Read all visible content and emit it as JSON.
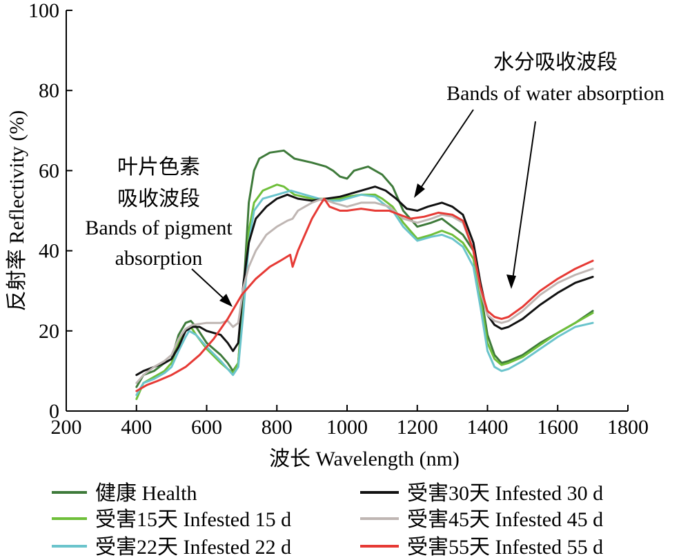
{
  "chart_data": {
    "type": "line",
    "xlabel": "波长 Wavelength (nm)",
    "ylabel": "反射率 Reflectivity (%)",
    "xlim": [
      200,
      1800
    ],
    "ylim": [
      0,
      100
    ],
    "xticks": [
      "200",
      "400",
      "600",
      "800",
      "1000",
      "1200",
      "1400",
      "1600",
      "1800"
    ],
    "yticks": [
      "0",
      "20",
      "40",
      "60",
      "80",
      "100"
    ],
    "grid": false,
    "legend_position": "bottom",
    "annotations": {
      "pigment_zh_line1": "叶片色素",
      "pigment_zh_line2": "吸收波段",
      "pigment_en_line1": "Bands of pigment",
      "pigment_en_line2": "absorption",
      "water_zh": "水分吸收波段",
      "water_en": "Bands of water  absorption"
    },
    "series": [
      {
        "name": "健康 Health",
        "color": "#3e7a3a",
        "points": [
          [
            400,
            6
          ],
          [
            420,
            9
          ],
          [
            450,
            10
          ],
          [
            480,
            12
          ],
          [
            500,
            13
          ],
          [
            520,
            19
          ],
          [
            540,
            22
          ],
          [
            555,
            22.5
          ],
          [
            570,
            21
          ],
          [
            600,
            17
          ],
          [
            640,
            14
          ],
          [
            660,
            12
          ],
          [
            675,
            10
          ],
          [
            690,
            12
          ],
          [
            705,
            30
          ],
          [
            720,
            52
          ],
          [
            735,
            60
          ],
          [
            750,
            63
          ],
          [
            780,
            64.5
          ],
          [
            820,
            65
          ],
          [
            850,
            63
          ],
          [
            900,
            62
          ],
          [
            940,
            61
          ],
          [
            960,
            60
          ],
          [
            980,
            58.5
          ],
          [
            1000,
            58
          ],
          [
            1020,
            60
          ],
          [
            1060,
            61
          ],
          [
            1100,
            59
          ],
          [
            1130,
            56
          ],
          [
            1160,
            50
          ],
          [
            1200,
            46
          ],
          [
            1240,
            47
          ],
          [
            1270,
            48
          ],
          [
            1300,
            46
          ],
          [
            1330,
            44
          ],
          [
            1360,
            40
          ],
          [
            1380,
            30
          ],
          [
            1400,
            19
          ],
          [
            1420,
            14
          ],
          [
            1440,
            12
          ],
          [
            1460,
            12.5
          ],
          [
            1500,
            14
          ],
          [
            1550,
            17
          ],
          [
            1600,
            19.5
          ],
          [
            1650,
            22
          ],
          [
            1700,
            25
          ]
        ]
      },
      {
        "name": "受害15天 Infested 15 d",
        "color": "#6fbf3a",
        "points": [
          [
            400,
            3
          ],
          [
            420,
            7
          ],
          [
            450,
            8.5
          ],
          [
            480,
            10
          ],
          [
            500,
            12
          ],
          [
            520,
            17
          ],
          [
            540,
            20
          ],
          [
            555,
            21
          ],
          [
            570,
            19
          ],
          [
            600,
            15.5
          ],
          [
            640,
            12
          ],
          [
            660,
            10.5
          ],
          [
            675,
            9.5
          ],
          [
            690,
            12
          ],
          [
            705,
            28
          ],
          [
            720,
            45
          ],
          [
            735,
            52
          ],
          [
            760,
            55
          ],
          [
            800,
            56.5
          ],
          [
            820,
            56
          ],
          [
            850,
            54
          ],
          [
            900,
            53
          ],
          [
            940,
            53
          ],
          [
            980,
            53
          ],
          [
            1000,
            53.5
          ],
          [
            1040,
            54
          ],
          [
            1080,
            54
          ],
          [
            1100,
            53
          ],
          [
            1130,
            51
          ],
          [
            1160,
            47
          ],
          [
            1200,
            43
          ],
          [
            1240,
            44
          ],
          [
            1270,
            45
          ],
          [
            1300,
            44
          ],
          [
            1330,
            42
          ],
          [
            1360,
            38
          ],
          [
            1380,
            28
          ],
          [
            1400,
            17
          ],
          [
            1420,
            13
          ],
          [
            1440,
            11.5
          ],
          [
            1460,
            12
          ],
          [
            1500,
            13.5
          ],
          [
            1550,
            16.5
          ],
          [
            1600,
            19.5
          ],
          [
            1650,
            22
          ],
          [
            1700,
            24.5
          ]
        ]
      },
      {
        "name": "受害22天 Infested 22 d",
        "color": "#6bc4cc",
        "points": [
          [
            400,
            4
          ],
          [
            420,
            7
          ],
          [
            450,
            8
          ],
          [
            480,
            9.5
          ],
          [
            500,
            11
          ],
          [
            520,
            15
          ],
          [
            540,
            18.5
          ],
          [
            550,
            20
          ],
          [
            570,
            19
          ],
          [
            600,
            16
          ],
          [
            640,
            12.5
          ],
          [
            660,
            10.5
          ],
          [
            675,
            9
          ],
          [
            690,
            11
          ],
          [
            705,
            25
          ],
          [
            720,
            42
          ],
          [
            735,
            50
          ],
          [
            760,
            53
          ],
          [
            800,
            54
          ],
          [
            840,
            55
          ],
          [
            880,
            54
          ],
          [
            920,
            53
          ],
          [
            940,
            52.5
          ],
          [
            980,
            52.5
          ],
          [
            1000,
            53
          ],
          [
            1040,
            54
          ],
          [
            1080,
            53.5
          ],
          [
            1100,
            52
          ],
          [
            1130,
            50
          ],
          [
            1160,
            46
          ],
          [
            1200,
            42.5
          ],
          [
            1240,
            43.5
          ],
          [
            1270,
            44
          ],
          [
            1300,
            43
          ],
          [
            1330,
            41
          ],
          [
            1360,
            36
          ],
          [
            1380,
            26
          ],
          [
            1400,
            15
          ],
          [
            1420,
            11
          ],
          [
            1440,
            10
          ],
          [
            1460,
            10.5
          ],
          [
            1500,
            12.5
          ],
          [
            1550,
            15.5
          ],
          [
            1600,
            18.5
          ],
          [
            1650,
            21
          ],
          [
            1700,
            22
          ]
        ]
      },
      {
        "name": "受害30天 Infested 30 d",
        "color": "#111111",
        "points": [
          [
            400,
            9
          ],
          [
            420,
            10
          ],
          [
            450,
            11
          ],
          [
            480,
            12
          ],
          [
            500,
            13
          ],
          [
            520,
            16
          ],
          [
            540,
            20
          ],
          [
            560,
            21
          ],
          [
            580,
            21
          ],
          [
            600,
            20
          ],
          [
            640,
            19
          ],
          [
            660,
            17
          ],
          [
            675,
            15
          ],
          [
            690,
            17
          ],
          [
            705,
            32
          ],
          [
            720,
            42
          ],
          [
            740,
            48
          ],
          [
            770,
            51
          ],
          [
            800,
            53
          ],
          [
            830,
            54
          ],
          [
            860,
            53
          ],
          [
            900,
            52.5
          ],
          [
            940,
            53
          ],
          [
            980,
            53.5
          ],
          [
            1000,
            54
          ],
          [
            1040,
            55
          ],
          [
            1080,
            56
          ],
          [
            1110,
            55
          ],
          [
            1140,
            53
          ],
          [
            1170,
            50.5
          ],
          [
            1200,
            50
          ],
          [
            1230,
            51
          ],
          [
            1270,
            52
          ],
          [
            1300,
            51
          ],
          [
            1330,
            49
          ],
          [
            1360,
            42
          ],
          [
            1380,
            32
          ],
          [
            1400,
            24
          ],
          [
            1420,
            21.5
          ],
          [
            1440,
            20.5
          ],
          [
            1460,
            21
          ],
          [
            1500,
            23
          ],
          [
            1550,
            26.5
          ],
          [
            1600,
            29.5
          ],
          [
            1650,
            32
          ],
          [
            1700,
            33.5
          ]
        ]
      },
      {
        "name": "受害45天 Infested 45 d",
        "color": "#bfb6b3",
        "points": [
          [
            400,
            7
          ],
          [
            420,
            9
          ],
          [
            450,
            11
          ],
          [
            480,
            12.5
          ],
          [
            500,
            14
          ],
          [
            520,
            18
          ],
          [
            540,
            20.5
          ],
          [
            560,
            21.5
          ],
          [
            600,
            22
          ],
          [
            640,
            22
          ],
          [
            660,
            22.5
          ],
          [
            675,
            21
          ],
          [
            690,
            22
          ],
          [
            705,
            31
          ],
          [
            720,
            36
          ],
          [
            740,
            40
          ],
          [
            770,
            44
          ],
          [
            800,
            46
          ],
          [
            830,
            47.5
          ],
          [
            845,
            48
          ],
          [
            860,
            50
          ],
          [
            880,
            51
          ],
          [
            900,
            52
          ],
          [
            930,
            53
          ],
          [
            960,
            52
          ],
          [
            1000,
            51
          ],
          [
            1040,
            52
          ],
          [
            1080,
            52
          ],
          [
            1120,
            51
          ],
          [
            1160,
            48
          ],
          [
            1200,
            47
          ],
          [
            1240,
            48
          ],
          [
            1270,
            49
          ],
          [
            1300,
            48.5
          ],
          [
            1330,
            47
          ],
          [
            1360,
            40
          ],
          [
            1380,
            30
          ],
          [
            1400,
            24
          ],
          [
            1420,
            22.5
          ],
          [
            1440,
            22
          ],
          [
            1460,
            22.5
          ],
          [
            1500,
            25
          ],
          [
            1550,
            29
          ],
          [
            1600,
            32
          ],
          [
            1650,
            34
          ],
          [
            1700,
            35.5
          ]
        ]
      },
      {
        "name": "受害55天 Infested 55 d",
        "color": "#e63a35",
        "points": [
          [
            400,
            5
          ],
          [
            430,
            6.5
          ],
          [
            460,
            7.5
          ],
          [
            500,
            9
          ],
          [
            540,
            11
          ],
          [
            580,
            14
          ],
          [
            620,
            18
          ],
          [
            660,
            23
          ],
          [
            700,
            29
          ],
          [
            740,
            33
          ],
          [
            780,
            36
          ],
          [
            810,
            37.5
          ],
          [
            838,
            39
          ],
          [
            845,
            36
          ],
          [
            860,
            40
          ],
          [
            880,
            44
          ],
          [
            900,
            48
          ],
          [
            920,
            51
          ],
          [
            935,
            53
          ],
          [
            950,
            51
          ],
          [
            980,
            50
          ],
          [
            1000,
            50
          ],
          [
            1040,
            50.5
          ],
          [
            1080,
            50
          ],
          [
            1120,
            50
          ],
          [
            1150,
            49
          ],
          [
            1180,
            48
          ],
          [
            1220,
            48.5
          ],
          [
            1260,
            49.5
          ],
          [
            1300,
            49
          ],
          [
            1330,
            47.5
          ],
          [
            1360,
            40
          ],
          [
            1380,
            31
          ],
          [
            1400,
            25
          ],
          [
            1420,
            23.5
          ],
          [
            1440,
            23
          ],
          [
            1460,
            23.5
          ],
          [
            1500,
            26
          ],
          [
            1550,
            30
          ],
          [
            1600,
            33
          ],
          [
            1650,
            35.5
          ],
          [
            1700,
            37.5
          ]
        ]
      }
    ]
  }
}
